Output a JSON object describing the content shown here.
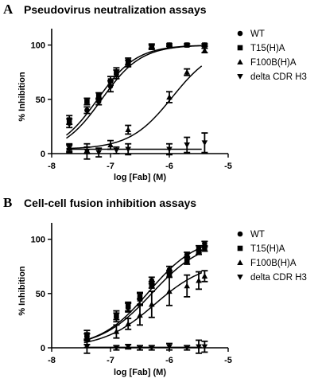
{
  "chart_data": [
    {
      "type": "scatter",
      "panel_label": "A",
      "title": "Pseudovirus neutralization assays",
      "xlabel": "log [Fab] (M)",
      "ylabel": "% Inhibition",
      "xlim": [
        -8,
        -5
      ],
      "ylim": [
        0,
        100
      ],
      "xticks": [
        "-8",
        "-7",
        "-6",
        "-5"
      ],
      "yticks": [
        "0",
        "50",
        "100"
      ],
      "legend_position": "right",
      "series": [
        {
          "name": "WT",
          "marker": "circle",
          "x": [
            -7.7,
            -7.4,
            -7.2,
            -7.0,
            -6.9,
            -6.7,
            -6.3,
            -6.0,
            -5.7,
            -5.4
          ],
          "y": [
            28,
            40,
            48,
            62,
            73,
            83,
            99,
            100,
            100,
            100
          ],
          "err": [
            4,
            3,
            3,
            5,
            4,
            3,
            2,
            1,
            1,
            1
          ],
          "fit": {
            "bottom": 0,
            "top": 100,
            "logec50": -7.15,
            "hill": 1.3
          }
        },
        {
          "name": "T15(H)A",
          "marker": "square",
          "x": [
            -7.7,
            -7.4,
            -7.2,
            -7.0,
            -6.9,
            -6.7,
            -6.3,
            -6.0,
            -5.7,
            -5.4
          ],
          "y": [
            31,
            48,
            53,
            67,
            75,
            85,
            98,
            100,
            100,
            100
          ],
          "err": [
            4,
            3,
            3,
            4,
            4,
            3,
            2,
            1,
            1,
            1
          ],
          "fit": {
            "bottom": 0,
            "top": 100,
            "logec50": -7.22,
            "hill": 1.3
          }
        },
        {
          "name": "F100B(H)A",
          "marker": "triangle-up",
          "x": [
            -7.7,
            -7.4,
            -7.0,
            -6.7,
            -6.0,
            -5.7,
            -5.4
          ],
          "y": [
            5,
            3,
            8,
            22,
            52,
            75,
            95
          ],
          "err": [
            3,
            3,
            4,
            4,
            5,
            3,
            2
          ],
          "fit": {
            "bottom": 4,
            "top": 100,
            "logec50": -5.95,
            "hill": 1.2
          }
        },
        {
          "name": "delta CDR H3",
          "marker": "triangle-down",
          "x": [
            -7.7,
            -7.4,
            -7.2,
            -6.9,
            -6.7,
            -6.0,
            -5.7,
            -5.4
          ],
          "y": [
            5,
            2,
            1,
            3,
            4,
            4,
            8,
            10
          ],
          "err": [
            4,
            7,
            4,
            3,
            5,
            5,
            7,
            9
          ],
          "fit": {
            "bottom": 4,
            "top": 4,
            "logec50": -6.5,
            "hill": 1
          }
        }
      ]
    },
    {
      "type": "scatter",
      "panel_label": "B",
      "title": "Cell-cell fusion inhibition assays",
      "xlabel": "log [Fab] (M)",
      "ylabel": "% Inhibition",
      "xlim": [
        -8,
        -5
      ],
      "ylim": [
        0,
        100
      ],
      "xticks": [
        "-8",
        "-7",
        "-6",
        "-5"
      ],
      "yticks": [
        "0",
        "50",
        "100"
      ],
      "legend_position": "right",
      "series": [
        {
          "name": "WT",
          "marker": "circle",
          "x": [
            -7.4,
            -6.9,
            -6.7,
            -6.5,
            -6.3,
            -6.0,
            -5.7,
            -5.5,
            -5.4
          ],
          "y": [
            10,
            28,
            37,
            48,
            62,
            72,
            86,
            92,
            96
          ],
          "err": [
            3,
            4,
            4,
            3,
            3,
            3,
            2,
            2,
            2
          ],
          "fit": {
            "bottom": 0,
            "top": 103,
            "logec50": -6.35,
            "hill": 1.05
          }
        },
        {
          "name": "T15(H)A",
          "marker": "square",
          "x": [
            -7.4,
            -6.9,
            -6.7,
            -6.5,
            -6.3,
            -6.0,
            -5.7,
            -5.5,
            -5.4
          ],
          "y": [
            12,
            30,
            38,
            45,
            58,
            68,
            80,
            88,
            91
          ],
          "err": [
            4,
            4,
            4,
            5,
            3,
            3,
            3,
            2,
            2
          ],
          "fit": {
            "bottom": 0,
            "top": 100,
            "logec50": -6.3,
            "hill": 1.0
          }
        },
        {
          "name": "F100B(H)A",
          "marker": "triangle-up",
          "x": [
            -7.4,
            -6.9,
            -6.7,
            -6.5,
            -6.3,
            -6.0,
            -5.7,
            -5.5,
            -5.4
          ],
          "y": [
            8,
            15,
            22,
            30,
            40,
            52,
            57,
            62,
            66
          ],
          "err": [
            5,
            6,
            5,
            9,
            12,
            13,
            10,
            8,
            5
          ],
          "fit": {
            "bottom": 0,
            "top": 80,
            "logec50": -6.25,
            "hill": 1.0
          }
        },
        {
          "name": "delta CDR H3",
          "marker": "triangle-down",
          "x": [
            -7.4,
            -6.9,
            -6.7,
            -6.5,
            -6.3,
            -6.0,
            -5.7,
            -5.5,
            -5.4
          ],
          "y": [
            1,
            0,
            1,
            0,
            0,
            1,
            0,
            1,
            1
          ],
          "err": [
            6,
            2,
            2,
            2,
            2,
            3,
            2,
            6,
            5
          ],
          "fit": {
            "bottom": 0.5,
            "top": 0.5,
            "logec50": -6.5,
            "hill": 1
          }
        }
      ]
    }
  ]
}
